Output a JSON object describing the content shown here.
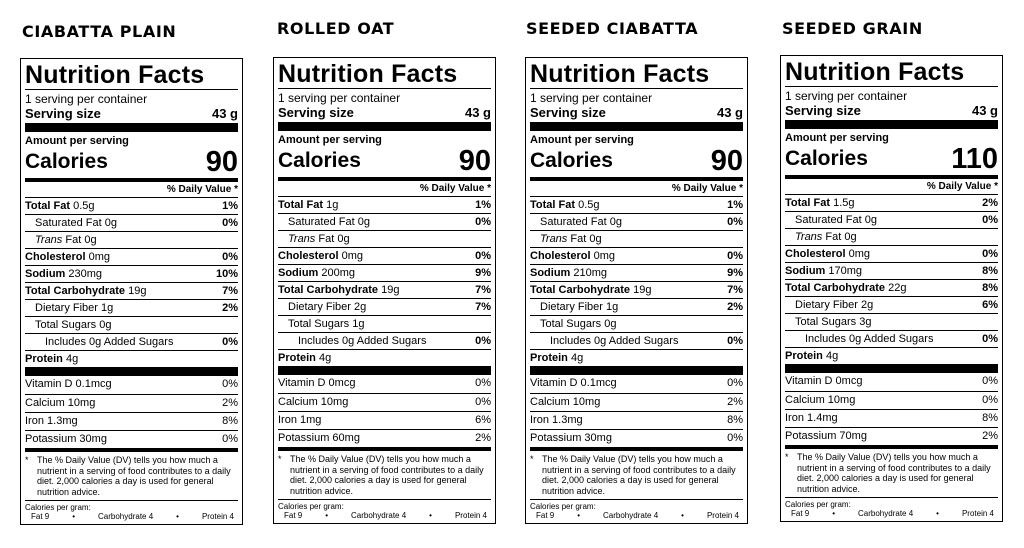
{
  "labels": {
    "nf_title": "Nutrition Facts",
    "servings": "1 serving per container",
    "serving_size": "Serving size",
    "amount_per_serving": "Amount per serving",
    "calories": "Calories",
    "dv_header": "% Daily Value *",
    "total_fat": "Total Fat",
    "saturated_fat": "Saturated Fat",
    "trans_fat_trans": "Trans",
    "trans_fat_rest": " Fat",
    "cholesterol": "Cholesterol",
    "sodium": "Sodium",
    "total_carb": "Total Carbohydrate",
    "fiber": "Dietary Fiber",
    "total_sugars": "Total Sugars",
    "added_sugars_prefix": "Includes ",
    "added_sugars_suffix": " Added Sugars",
    "protein": "Protein",
    "vitamin_d": "Vitamin D",
    "calcium": "Calcium",
    "iron": "Iron",
    "potassium": "Potassium",
    "footnote_star": "*",
    "footnote": "The % Daily Value (DV) tells you how much a nutrient in a serving of food contributes to a daily diet. 2,000 calories a day is used for general nutrition advice.",
    "cpg_title": "Calories per gram:",
    "cpg_fat": "Fat 9",
    "cpg_bullet": "•",
    "cpg_carb": "Carbohydrate 4",
    "cpg_protein": "Protein 4"
  },
  "products": [
    {
      "name": "CIABATTA PLAIN",
      "serving_size": "43 g",
      "calories": "90",
      "total_fat": "0.5g",
      "total_fat_dv": "1%",
      "sat_fat": "0g",
      "sat_fat_dv": "0%",
      "trans_fat": "0g",
      "cholesterol": "0mg",
      "cholesterol_dv": "0%",
      "sodium": "230mg",
      "sodium_dv": "10%",
      "carb": "19g",
      "carb_dv": "7%",
      "fiber": "1g",
      "fiber_dv": "2%",
      "sugars": "0g",
      "added_sugars": "0g",
      "added_sugars_dv": "0%",
      "protein": "4g",
      "vit_d": "0.1mcg",
      "vit_d_dv": "0%",
      "calcium": "10mg",
      "calcium_dv": "2%",
      "iron": "1.3mg",
      "iron_dv": "8%",
      "potassium": "30mg",
      "potassium_dv": "0%"
    },
    {
      "name": "ROLLED OAT",
      "serving_size": "43 g",
      "calories": "90",
      "total_fat": "1g",
      "total_fat_dv": "1%",
      "sat_fat": "0g",
      "sat_fat_dv": "0%",
      "trans_fat": "0g",
      "cholesterol": "0mg",
      "cholesterol_dv": "0%",
      "sodium": "200mg",
      "sodium_dv": "9%",
      "carb": "19g",
      "carb_dv": "7%",
      "fiber": "2g",
      "fiber_dv": "7%",
      "sugars": "1g",
      "added_sugars": "0g",
      "added_sugars_dv": "0%",
      "protein": "4g",
      "vit_d": "0mcg",
      "vit_d_dv": "0%",
      "calcium": "10mg",
      "calcium_dv": "0%",
      "iron": "1mg",
      "iron_dv": "6%",
      "potassium": "60mg",
      "potassium_dv": "2%"
    },
    {
      "name": "SEEDED CIABATTA",
      "serving_size": "43 g",
      "calories": "90",
      "total_fat": "0.5g",
      "total_fat_dv": "1%",
      "sat_fat": "0g",
      "sat_fat_dv": "0%",
      "trans_fat": "0g",
      "cholesterol": "0mg",
      "cholesterol_dv": "0%",
      "sodium": "210mg",
      "sodium_dv": "9%",
      "carb": "19g",
      "carb_dv": "7%",
      "fiber": "1g",
      "fiber_dv": "2%",
      "sugars": "0g",
      "added_sugars": "0g",
      "added_sugars_dv": "0%",
      "protein": "4g",
      "vit_d": "0.1mcg",
      "vit_d_dv": "0%",
      "calcium": "10mg",
      "calcium_dv": "2%",
      "iron": "1.3mg",
      "iron_dv": "8%",
      "potassium": "30mg",
      "potassium_dv": "0%"
    },
    {
      "name": "SEEDED GRAIN",
      "serving_size": "43 g",
      "calories": "110",
      "total_fat": "1.5g",
      "total_fat_dv": "2%",
      "sat_fat": "0g",
      "sat_fat_dv": "0%",
      "trans_fat": "0g",
      "cholesterol": "0mg",
      "cholesterol_dv": "0%",
      "sodium": "170mg",
      "sodium_dv": "8%",
      "carb": "22g",
      "carb_dv": "8%",
      "fiber": "2g",
      "fiber_dv": "6%",
      "sugars": "3g",
      "added_sugars": "0g",
      "added_sugars_dv": "0%",
      "protein": "4g",
      "vit_d": "0mcg",
      "vit_d_dv": "0%",
      "calcium": "10mg",
      "calcium_dv": "0%",
      "iron": "1.4mg",
      "iron_dv": "8%",
      "potassium": "70mg",
      "potassium_dv": "2%"
    }
  ]
}
